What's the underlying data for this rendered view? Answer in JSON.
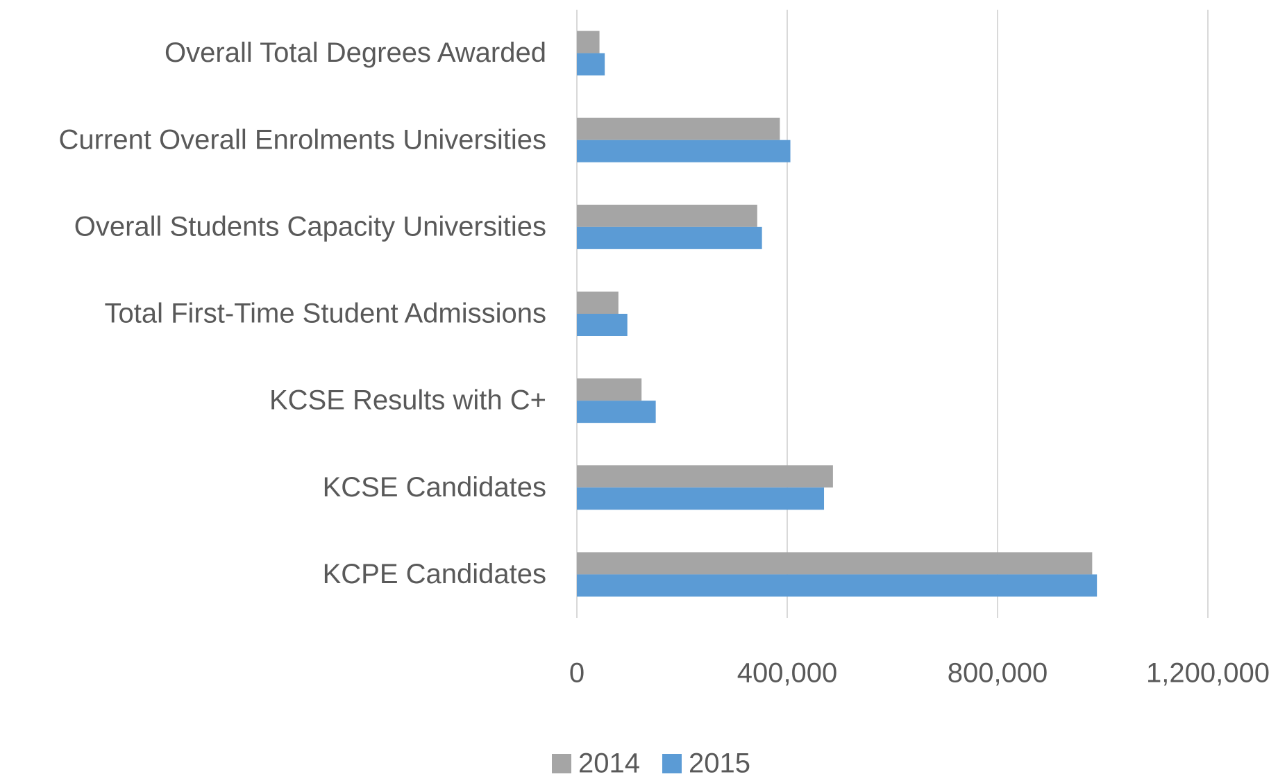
{
  "chart_data": {
    "type": "bar",
    "orientation": "horizontal",
    "categories": [
      "Overall Total Degrees Awarded",
      "Current Overall Enrolments Universities",
      "Overall Students Capacity Universities",
      "Total First-Time Student Admissions",
      "KCSE Results with C+",
      "KCSE Candidates",
      "KCPE Candidates"
    ],
    "series": [
      {
        "name": "2014",
        "color": "#a5a5a5",
        "values": [
          43000,
          386000,
          343000,
          79000,
          123000,
          487000,
          980000
        ]
      },
      {
        "name": "2015",
        "color": "#5b9bd5",
        "values": [
          53000,
          406000,
          352000,
          96000,
          150000,
          470000,
          989000
        ]
      }
    ],
    "xlim": [
      0,
      1200000
    ],
    "xticks": [
      0,
      {
        "value": 400000,
        "label": "400,000"
      },
      {
        "value": 800000,
        "label": "800,000"
      },
      {
        "value": 1200000,
        "label": "1,200,000"
      }
    ],
    "grid": true,
    "legend": "bottom"
  }
}
